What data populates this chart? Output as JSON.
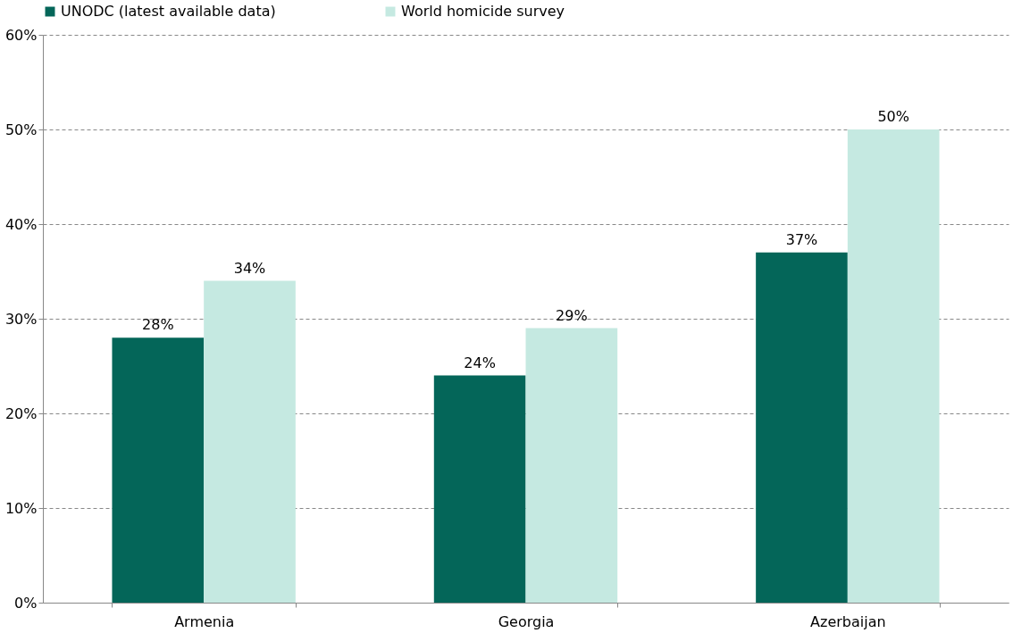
{
  "chart_data": {
    "type": "bar",
    "categories": [
      "Armenia",
      "Georgia",
      "Azerbaijan"
    ],
    "series": [
      {
        "name": "UNODC (latest available data)",
        "color": "#046659",
        "values": [
          28,
          24,
          37
        ],
        "value_labels": [
          "28%",
          "24%",
          "37%"
        ]
      },
      {
        "name": "World homicide survey",
        "color": "#c5e9e1",
        "values": [
          34,
          29,
          50
        ],
        "value_labels": [
          "34%",
          "29%",
          "50%"
        ]
      }
    ],
    "ylim": [
      0,
      60
    ],
    "yticks": [
      {
        "value": 0,
        "label": "0%"
      },
      {
        "value": 10,
        "label": "10%"
      },
      {
        "value": 20,
        "label": "20%"
      },
      {
        "value": 30,
        "label": "30%"
      },
      {
        "value": 40,
        "label": "40%"
      },
      {
        "value": 50,
        "label": "50%"
      },
      {
        "value": 60,
        "label": "60%"
      }
    ],
    "grid": "y",
    "line_style": "dashed",
    "legend": "top"
  }
}
